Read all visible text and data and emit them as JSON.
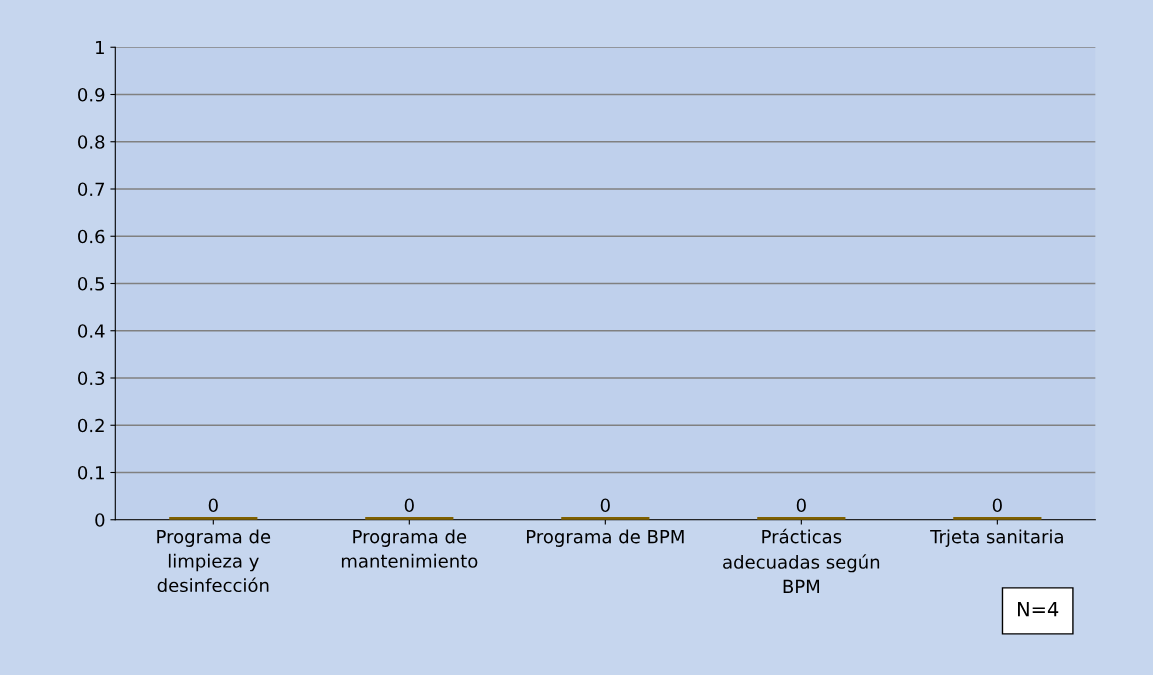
{
  "chart_data": {
    "type": "bar",
    "categories": [
      "Programa de limpieza y desinfección",
      "Programa de mantenimiento",
      "Programa de BPM",
      "Prácticas adecuadas según BPM",
      "Trjeta sanitaria"
    ],
    "values": [
      0,
      0,
      0,
      0,
      0
    ],
    "color": "#7f6000",
    "ylim": [
      0,
      1
    ],
    "yticks": [
      0,
      0.1,
      0.2,
      0.3,
      0.4,
      0.5,
      0.6,
      0.7,
      0.8,
      0.9,
      1
    ],
    "grid": "y",
    "data_labels": true,
    "annotations": [
      "N=4"
    ]
  }
}
